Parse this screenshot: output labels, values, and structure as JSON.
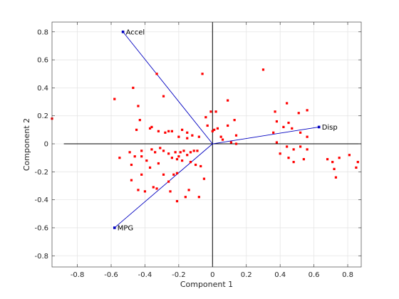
{
  "chart_data": {
    "type": "scatter",
    "title": "",
    "xlabel": "Component 1",
    "ylabel": "Component 2",
    "xlim": [
      -0.95,
      0.88
    ],
    "ylim": [
      -0.88,
      0.87
    ],
    "grid": true,
    "xticks": [
      -0.8,
      -0.6,
      -0.4,
      -0.2,
      0,
      0.2,
      0.4,
      0.6,
      0.8
    ],
    "yticks": [
      -0.8,
      -0.6,
      -0.4,
      -0.2,
      0,
      0.2,
      0.4,
      0.6,
      0.8
    ],
    "xtick_labels": [
      "-0.8",
      "-0.6",
      "-0.4",
      "-0.2",
      "0",
      "0.2",
      "0.4",
      "0.6",
      "0.8"
    ],
    "ytick_labels": [
      "-0.8",
      "-0.6",
      "-0.4",
      "-0.2",
      "0",
      "0.2",
      "0.4",
      "0.6",
      "0.8"
    ],
    "reference_lines": {
      "horizontal_x_range": [
        -0.88,
        0.88
      ],
      "vertical_y_range": [
        -0.88,
        0.87
      ]
    },
    "vectors": [
      {
        "label": "Accel",
        "x": -0.53,
        "y": 0.8
      },
      {
        "label": "Disp",
        "x": 0.63,
        "y": 0.12
      },
      {
        "label": "MPG",
        "x": -0.58,
        "y": -0.6
      }
    ],
    "colors": {
      "points": "#ff0000",
      "vectors": "#0000c0",
      "axes": "#000000",
      "grid": "#e5e5e5"
    },
    "scores": [
      [
        -0.95,
        0.18
      ],
      [
        -0.58,
        0.32
      ],
      [
        -0.47,
        0.4
      ],
      [
        -0.33,
        0.5
      ],
      [
        -0.06,
        0.5
      ],
      [
        0.3,
        0.53
      ],
      [
        -0.44,
        0.27
      ],
      [
        -0.29,
        0.34
      ],
      [
        -0.43,
        0.17
      ],
      [
        -0.36,
        0.12
      ],
      [
        -0.37,
        0.11
      ],
      [
        -0.45,
        0.1
      ],
      [
        -0.32,
        0.09
      ],
      [
        -0.26,
        0.09
      ],
      [
        -0.28,
        0.08
      ],
      [
        -0.24,
        0.09
      ],
      [
        -0.18,
        0.1
      ],
      [
        -0.15,
        0.08
      ],
      [
        -0.2,
        0.05
      ],
      [
        -0.15,
        0.04
      ],
      [
        -0.12,
        0.06
      ],
      [
        -0.08,
        0.05
      ],
      [
        -0.04,
        0.19
      ],
      [
        -0.03,
        0.13
      ],
      [
        -0.01,
        0.23
      ],
      [
        0.02,
        0.23
      ],
      [
        0.03,
        0.11
      ],
      [
        0.0,
        0.09
      ],
      [
        0.01,
        0.1
      ],
      [
        0.05,
        0.05
      ],
      [
        0.06,
        0.03
      ],
      [
        0.09,
        0.31
      ],
      [
        0.09,
        0.13
      ],
      [
        0.13,
        0.17
      ],
      [
        0.14,
        0.06
      ],
      [
        0.11,
        0.01
      ],
      [
        0.14,
        0.0
      ],
      [
        -0.55,
        -0.1
      ],
      [
        -0.49,
        -0.06
      ],
      [
        -0.46,
        -0.09
      ],
      [
        -0.42,
        -0.05
      ],
      [
        -0.42,
        -0.09
      ],
      [
        -0.39,
        -0.12
      ],
      [
        -0.36,
        -0.04
      ],
      [
        -0.34,
        -0.06
      ],
      [
        -0.31,
        -0.03
      ],
      [
        -0.29,
        -0.05
      ],
      [
        -0.26,
        -0.07
      ],
      [
        -0.22,
        -0.06
      ],
      [
        -0.19,
        -0.06
      ],
      [
        -0.17,
        -0.05
      ],
      [
        -0.15,
        -0.08
      ],
      [
        -0.13,
        -0.06
      ],
      [
        -0.11,
        -0.05
      ],
      [
        -0.09,
        -0.05
      ],
      [
        -0.24,
        -0.1
      ],
      [
        -0.2,
        -0.09
      ],
      [
        -0.21,
        -0.11
      ],
      [
        -0.18,
        -0.12
      ],
      [
        -0.13,
        -0.13
      ],
      [
        -0.1,
        -0.15
      ],
      [
        -0.07,
        -0.16
      ],
      [
        -0.05,
        -0.25
      ],
      [
        -0.37,
        -0.17
      ],
      [
        -0.32,
        -0.14
      ],
      [
        -0.29,
        -0.22
      ],
      [
        -0.48,
        -0.15
      ],
      [
        -0.48,
        -0.26
      ],
      [
        -0.42,
        -0.22
      ],
      [
        -0.44,
        -0.33
      ],
      [
        -0.4,
        -0.34
      ],
      [
        -0.35,
        -0.31
      ],
      [
        -0.33,
        -0.32
      ],
      [
        -0.26,
        -0.27
      ],
      [
        -0.25,
        -0.34
      ],
      [
        -0.23,
        -0.22
      ],
      [
        -0.21,
        -0.21
      ],
      [
        -0.21,
        -0.41
      ],
      [
        -0.16,
        -0.38
      ],
      [
        -0.14,
        -0.33
      ],
      [
        -0.08,
        -0.38
      ],
      [
        0.37,
        0.23
      ],
      [
        0.44,
        0.29
      ],
      [
        0.51,
        0.22
      ],
      [
        0.56,
        0.24
      ],
      [
        0.38,
        0.16
      ],
      [
        0.45,
        0.15
      ],
      [
        0.42,
        0.12
      ],
      [
        0.47,
        0.11
      ],
      [
        0.36,
        0.08
      ],
      [
        0.52,
        0.08
      ],
      [
        0.56,
        0.05
      ],
      [
        0.38,
        0.01
      ],
      [
        0.44,
        -0.02
      ],
      [
        0.4,
        -0.07
      ],
      [
        0.48,
        -0.04
      ],
      [
        0.52,
        -0.02
      ],
      [
        0.56,
        -0.04
      ],
      [
        0.45,
        -0.1
      ],
      [
        0.48,
        -0.13
      ],
      [
        0.54,
        -0.11
      ],
      [
        0.68,
        -0.11
      ],
      [
        0.71,
        -0.13
      ],
      [
        0.73,
        -0.24
      ],
      [
        0.75,
        -0.1
      ],
      [
        0.72,
        -0.18
      ],
      [
        0.81,
        -0.08
      ],
      [
        0.86,
        -0.13
      ],
      [
        0.85,
        -0.17
      ]
    ]
  }
}
